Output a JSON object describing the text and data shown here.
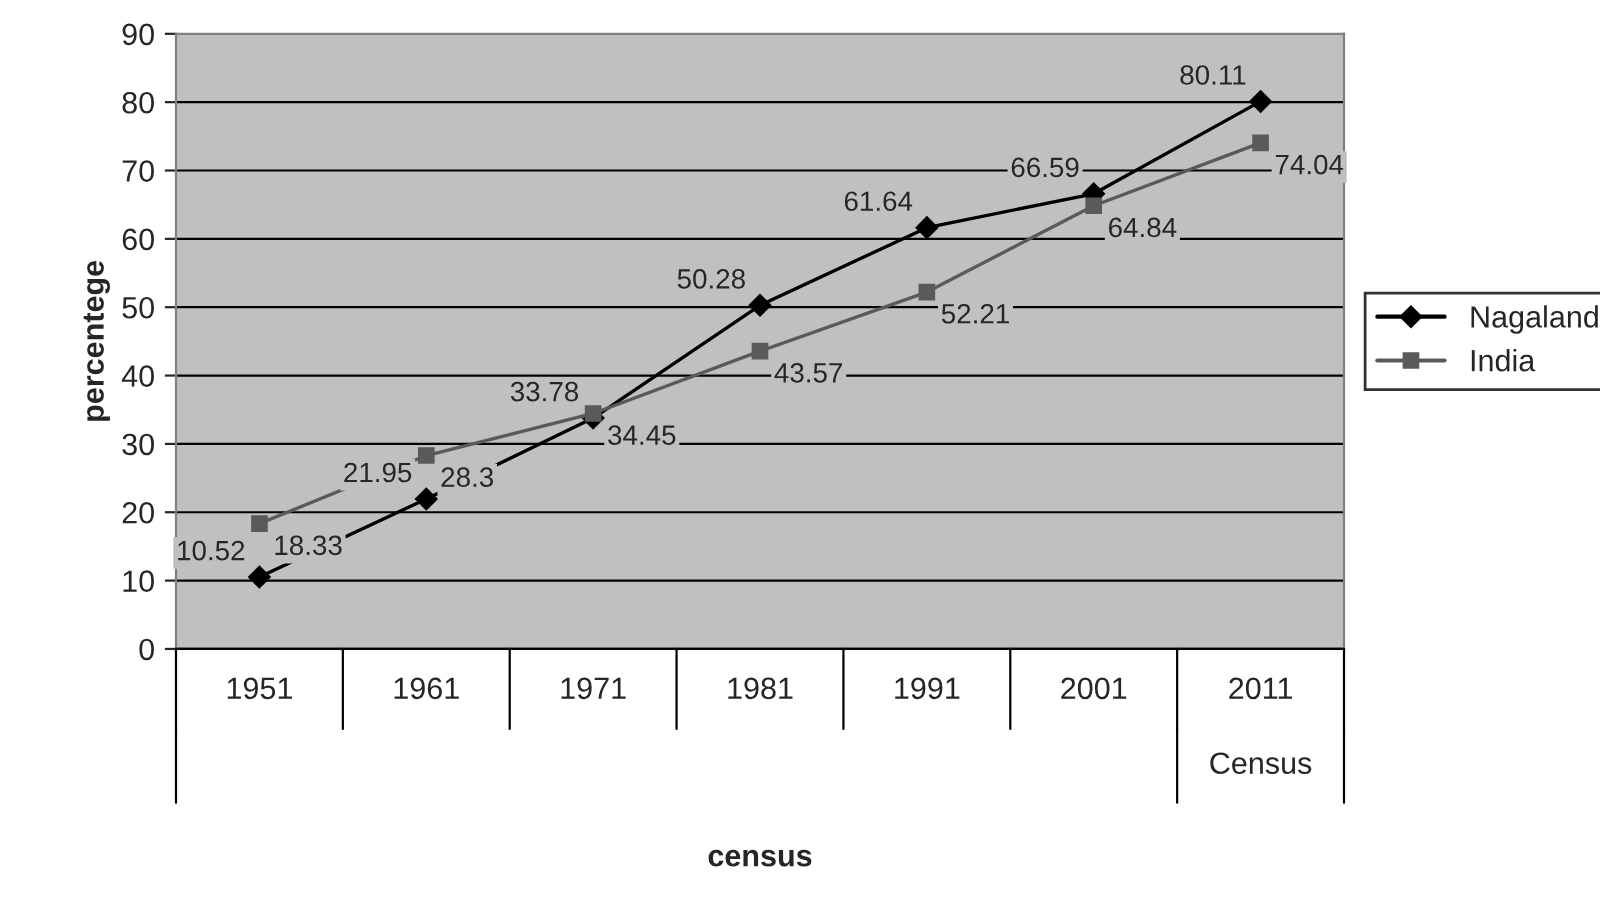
{
  "chart_data": {
    "type": "line",
    "xlabel": "census",
    "ylabel": "percentege",
    "categories": [
      "1951",
      "1961",
      "1971",
      "1981",
      "1991",
      "2001",
      "2011"
    ],
    "series": [
      {
        "name": "Nagaland",
        "color": "#000000",
        "marker": "diamond",
        "values": [
          10.52,
          21.95,
          33.78,
          50.28,
          61.64,
          66.59,
          80.11
        ]
      },
      {
        "name": "India",
        "color": "#5a5a5a",
        "marker": "square",
        "values": [
          18.33,
          28.3,
          34.45,
          43.57,
          52.21,
          64.84,
          74.04
        ]
      }
    ],
    "annotations": [
      "Census"
    ],
    "ylim": [
      0,
      90
    ],
    "yticks": [
      0,
      10,
      20,
      30,
      40,
      50,
      60,
      70,
      80,
      90
    ],
    "grid": "y",
    "legend": "right",
    "data_labels": true,
    "line_style": "solid"
  }
}
